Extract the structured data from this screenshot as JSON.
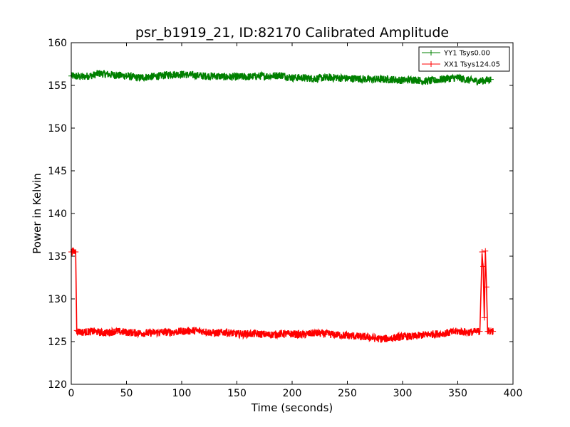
{
  "chart_data": {
    "type": "line",
    "title": "psr_b1919_21, ID:82170 Calibrated Amplitude",
    "xlabel": "Time (seconds)",
    "ylabel": "Power in Kelvin",
    "xlim": [
      0,
      400
    ],
    "ylim": [
      120,
      160
    ],
    "xticks": [
      "0",
      "50",
      "100",
      "150",
      "200",
      "250",
      "300",
      "350",
      "400"
    ],
    "yticks": [
      "120",
      "125",
      "130",
      "135",
      "140",
      "145",
      "150",
      "155",
      "160"
    ],
    "grid": false,
    "legend_position": "top-right",
    "series": [
      {
        "name": "YY1 Tsys0.00",
        "color": "#008000",
        "marker": "+",
        "x": [
          0,
          10,
          20,
          25,
          40,
          50,
          60,
          70,
          80,
          90,
          100,
          110,
          120,
          130,
          140,
          150,
          160,
          170,
          180,
          190,
          200,
          210,
          220,
          230,
          240,
          250,
          260,
          270,
          280,
          290,
          300,
          310,
          320,
          330,
          340,
          350,
          360,
          370,
          380
        ],
        "y": [
          156.1,
          156.0,
          156.2,
          156.4,
          156.2,
          156.1,
          155.9,
          156.0,
          156.1,
          156.3,
          156.3,
          156.2,
          156.1,
          156.1,
          156.0,
          156.0,
          156.0,
          156.1,
          156.1,
          156.2,
          155.9,
          155.9,
          155.8,
          155.9,
          155.9,
          155.8,
          155.8,
          155.7,
          155.7,
          155.7,
          155.6,
          155.7,
          155.5,
          155.6,
          155.8,
          155.9,
          155.6,
          155.5,
          155.7
        ]
      },
      {
        "name": "XX1 Tsys124.05",
        "color": "#ff0000",
        "marker": "+",
        "x": [
          0,
          2,
          4,
          5,
          6,
          10,
          20,
          30,
          40,
          50,
          60,
          70,
          80,
          90,
          100,
          110,
          120,
          130,
          140,
          150,
          160,
          170,
          180,
          190,
          200,
          210,
          220,
          230,
          240,
          250,
          260,
          270,
          280,
          290,
          300,
          310,
          320,
          330,
          340,
          350,
          360,
          370,
          372,
          373,
          374,
          375,
          376,
          377,
          378,
          380,
          382
        ],
        "y": [
          135.5,
          135.6,
          135.5,
          126.3,
          126.2,
          126.1,
          126.2,
          126.0,
          126.2,
          126.1,
          126.0,
          126.0,
          126.1,
          126.1,
          126.2,
          126.3,
          126.2,
          126.0,
          126.1,
          125.9,
          125.9,
          125.9,
          125.8,
          125.9,
          125.9,
          125.8,
          126.0,
          125.9,
          125.8,
          125.7,
          125.6,
          125.5,
          125.3,
          125.4,
          125.6,
          125.6,
          125.8,
          125.9,
          126.0,
          126.2,
          126.1,
          126.2,
          135.5,
          133.8,
          127.8,
          135.6,
          131.4,
          126.2,
          126.2,
          126.3,
          126.2
        ]
      }
    ]
  }
}
